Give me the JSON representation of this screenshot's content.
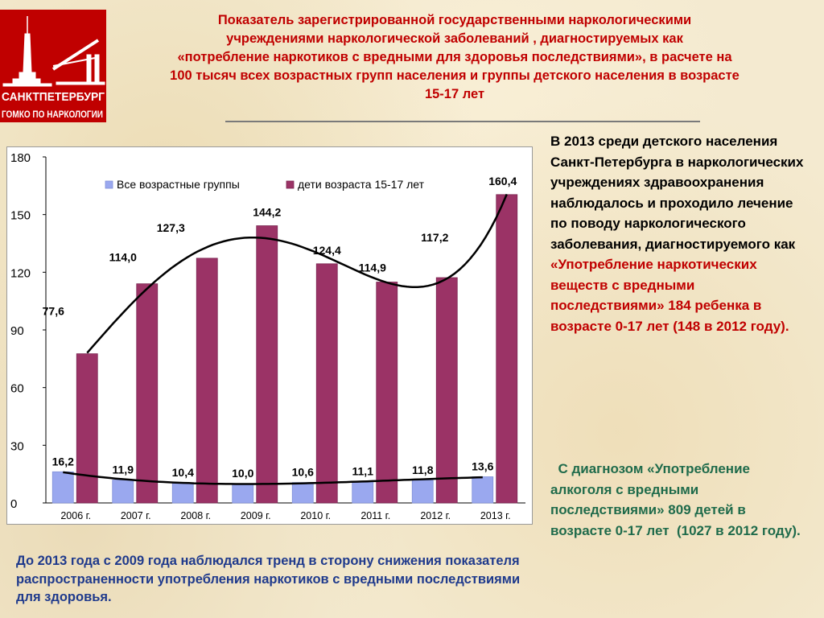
{
  "logo": {
    "line1": "САНКТПЕТЕРБУРГ",
    "line2": "ГОМКО ПО НАРКОЛОГИИ",
    "bg_color": "#c00000",
    "icon": "peter-and-paul-spire-and-bridge"
  },
  "title": {
    "line1": "Показатель зарегистрированной государственными наркологическими",
    "line2": "учреждениями наркологической заболеваний , диагностируемых как",
    "line3": "«потребление наркотиков с вредными для здоровья последствиями»,  в расчете на",
    "line4": "100 тысяч всех возрастных групп населения и группы детского населения в возрасте",
    "line5": "15-17 лет"
  },
  "right_text": {
    "para1_black": "В 2013 среди детского населения Санкт-Петербурга в наркологических учреждениях здравоохранения наблюдалось и проходило лечение по поводу наркологического заболевания, диагностируемого как ",
    "para1_red": "«Употребление наркотических веществ с вредными последствиями» 184 ребенка в возрасте 0-17 лет  (148 в 2012 году).",
    "para2": "  С диагнозом «Употребление алкоголя с вредными последствиями» 809 детей в возрасте 0-17 лет  (1027 в 2012 году)."
  },
  "bottom_text": "До 2013 года с 2009 года наблюдался  тренд в сторону снижения показателя  распространенности употребления наркотиков с вредными последствиями для здоровья.",
  "chart_data": {
    "type": "bar",
    "categories": [
      "2006 г.",
      "2007 г.",
      "2008 г.",
      "2009 г.",
      "2010 г.",
      "2011 г.",
      "2012 г.",
      "2013 г."
    ],
    "series": [
      {
        "name": "Все возрастные группы",
        "values": [
          16.2,
          11.9,
          10.4,
          10.0,
          10.6,
          11.1,
          11.8,
          13.6
        ],
        "labels": [
          "16,2",
          "11,9",
          "10,4",
          "10,0",
          "10,6",
          "11,1",
          "11,8",
          "13,6"
        ],
        "color": "#9aa8ef"
      },
      {
        "name": "дети возраста 15-17 лет",
        "values": [
          77.6,
          114.0,
          127.3,
          144.2,
          124.4,
          114.9,
          117.2,
          160.4
        ],
        "labels": [
          "77,6",
          "114,0",
          "127,3",
          "144,2",
          "124,4",
          "114,9",
          "117,2",
          "160,4"
        ],
        "color": "#9b3366"
      }
    ],
    "yticks": [
      "0",
      "30",
      "60",
      "90",
      "120",
      "150",
      "180"
    ],
    "ylim": [
      0,
      180
    ],
    "trendlines": true,
    "grid": false,
    "legend_position": "top-left"
  }
}
